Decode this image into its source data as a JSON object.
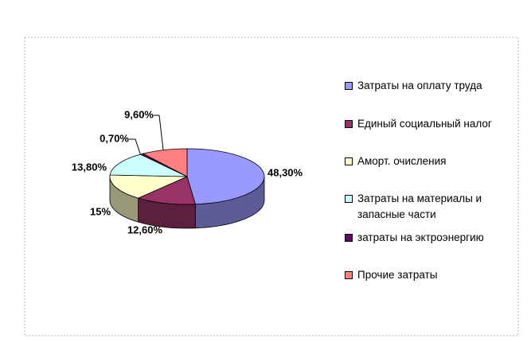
{
  "chart_data": {
    "type": "pie3d",
    "categories": [
      "Затраты на оплату труда",
      "Единый социальный налог",
      "Аморт. очисления",
      "Затраты на материалы и запасные части",
      "затраты на эктроэнергию",
      "Прочие затраты"
    ],
    "values": [
      48.3,
      12.6,
      15,
      13.8,
      0.7,
      9.6
    ],
    "value_labels": [
      "48,30%",
      "12,60%",
      "15%",
      "13,80%",
      "0,70%",
      "9,60%"
    ],
    "colors": [
      "#9999ff",
      "#993366",
      "#ffffcc",
      "#ccffff",
      "#660066",
      "#ff8080"
    ]
  }
}
